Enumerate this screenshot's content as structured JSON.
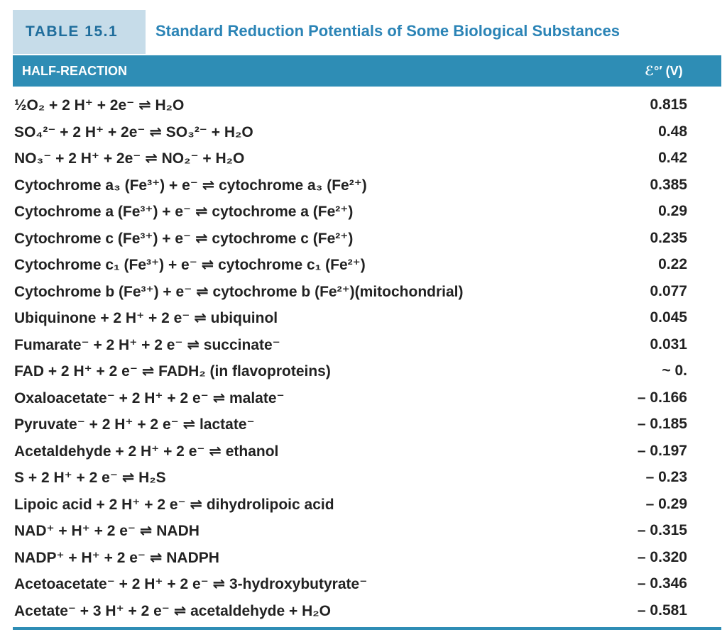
{
  "header": {
    "label": "TABLE 15.1",
    "title": "Standard Reduction Potentials of Some Biological Substances"
  },
  "table": {
    "columns": [
      "HALF-REACTION",
      "ℰ°′ (V)"
    ],
    "rows": [
      [
        "½O₂ + 2 H⁺ + 2e⁻ ⇌ H₂O",
        "0.815"
      ],
      [
        "SO₄²⁻ + 2 H⁺ + 2e⁻ ⇌ SO₃²⁻ + H₂O",
        "0.48"
      ],
      [
        "NO₃⁻ + 2 H⁺ + 2e⁻ ⇌ NO₂⁻ + H₂O",
        "0.42"
      ],
      [
        "Cytochrome a₃ (Fe³⁺) + e⁻ ⇌ cytochrome a₃ (Fe²⁺)",
        "0.385"
      ],
      [
        "Cytochrome a (Fe³⁺) + e⁻ ⇌ cytochrome a (Fe²⁺)",
        "0.29"
      ],
      [
        "Cytochrome c (Fe³⁺) + e⁻ ⇌ cytochrome c (Fe²⁺)",
        "0.235"
      ],
      [
        "Cytochrome c₁ (Fe³⁺) + e⁻ ⇌ cytochrome c₁ (Fe²⁺)",
        "0.22"
      ],
      [
        "Cytochrome b (Fe³⁺) + e⁻ ⇌ cytochrome b (Fe²⁺)(mitochondrial)",
        "0.077"
      ],
      [
        "Ubiquinone + 2 H⁺ + 2 e⁻ ⇌ ubiquinol",
        "0.045"
      ],
      [
        "Fumarate⁻ + 2 H⁺ + 2 e⁻ ⇌ succinate⁻",
        "0.031"
      ],
      [
        "FAD + 2 H⁺ + 2 e⁻ ⇌ FADH₂ (in flavoproteins)",
        "~ 0."
      ],
      [
        "Oxaloacetate⁻ + 2 H⁺ + 2 e⁻ ⇌ malate⁻",
        "– 0.166"
      ],
      [
        "Pyruvate⁻ + 2 H⁺ + 2 e⁻ ⇌ lactate⁻",
        "– 0.185"
      ],
      [
        "Acetaldehyde + 2 H⁺ + 2 e⁻ ⇌ ethanol",
        "– 0.197"
      ],
      [
        "S + 2 H⁺ + 2 e⁻ ⇌ H₂S",
        "– 0.23"
      ],
      [
        "Lipoic acid + 2 H⁺ + 2 e⁻ ⇌ dihydrolipoic acid",
        "– 0.29"
      ],
      [
        "NAD⁺ + H⁺ + 2 e⁻ ⇌ NADH",
        "– 0.315"
      ],
      [
        "NADP⁺ + H⁺ + 2 e⁻ ⇌ NADPH",
        "– 0.320"
      ],
      [
        "Acetoacetate⁻ + 2 H⁺ + 2 e⁻ ⇌ 3-hydroxybutyrate⁻",
        "– 0.346"
      ],
      [
        "Acetate⁻ + 3 H⁺ + 2 e⁻ ⇌ acetaldehyde + H₂O",
        "– 0.581"
      ]
    ]
  }
}
